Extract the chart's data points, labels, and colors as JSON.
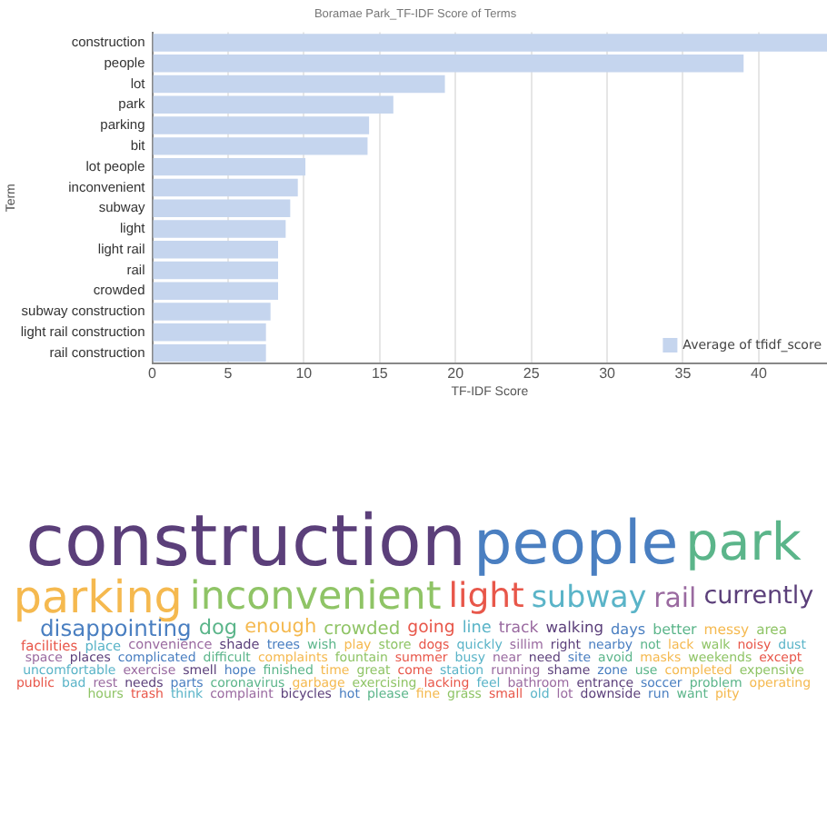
{
  "chart_data": [
    {
      "type": "bar",
      "orientation": "horizontal",
      "title": "Boramae Park_TF-IDF Score of Terms",
      "xlabel": "TF-IDF Score",
      "ylabel": "Term",
      "categories": [
        "construction",
        "people",
        "lot",
        "park",
        "parking",
        "bit",
        "lot people",
        "inconvenient",
        "subway",
        "light",
        "light rail",
        "rail",
        "crowded",
        "subway construction",
        "light rail construction",
        "rail construction"
      ],
      "series": [
        {
          "name": "Average of tfidf_score",
          "color": "#c5d5ee",
          "values": [
            44.5,
            39.0,
            19.3,
            15.9,
            14.3,
            14.2,
            10.1,
            9.6,
            9.1,
            8.8,
            8.3,
            8.3,
            8.3,
            7.8,
            7.5,
            7.5
          ]
        }
      ],
      "xlim": [
        0,
        44.5
      ],
      "xticks": [
        0,
        5,
        10,
        15,
        20,
        25,
        30,
        35,
        40
      ],
      "grid": "x",
      "legend": "bottom right"
    },
    {
      "type": "other",
      "annotations": [
        "construction",
        "people",
        "park",
        "parking",
        "inconvenient",
        "light",
        "subway",
        "rail",
        "currently",
        "disappointing",
        "dog",
        "enough",
        "crowded",
        "going",
        "line",
        "track",
        "walking",
        "days",
        "better",
        "messy",
        "area",
        "facilities",
        "place",
        "convenience",
        "shade",
        "trees",
        "wish",
        "play",
        "store",
        "dogs",
        "quickly",
        "sillim",
        "right",
        "nearby",
        "not",
        "lack",
        "walk",
        "noisy",
        "dust",
        "space",
        "places",
        "complicated",
        "difficult",
        "complaints",
        "fountain",
        "summer",
        "busy",
        "near",
        "need",
        "site",
        "avoid",
        "masks",
        "weekends",
        "except",
        "uncomfortable",
        "exercise",
        "smell",
        "hope",
        "finished",
        "time",
        "great",
        "come",
        "station",
        "running",
        "shame",
        "zone",
        "use",
        "completed",
        "expensive",
        "public",
        "bad",
        "rest",
        "needs",
        "parts",
        "coronavirus",
        "garbage",
        "exercising",
        "lacking",
        "feel",
        "bathroom",
        "entrance",
        "soccer",
        "problem",
        "operating",
        "hours",
        "trash",
        "think",
        "complaint",
        "bicycles",
        "hot",
        "please",
        "fine",
        "grass",
        "small",
        "old",
        "lot",
        "downside",
        "run",
        "want",
        "pity"
      ]
    }
  ]
}
